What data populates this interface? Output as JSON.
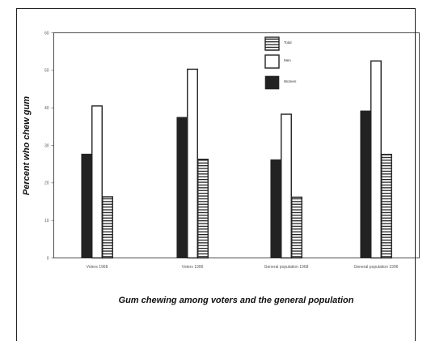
{
  "chart_data": {
    "type": "bar",
    "title": "",
    "xlabel": "Gum chewing among voters and the general population",
    "ylabel": "Percent who chew gum",
    "categories": [
      "Voters 1968",
      "Voters 1996",
      "General population 1968",
      "General population 1996"
    ],
    "series": [
      {
        "name": "Women",
        "values": [
          27.7,
          37.5,
          26.2,
          39.2
        ],
        "color": "#222222",
        "pattern": "solid"
      },
      {
        "name": "Men",
        "values": [
          40.5,
          50.3,
          38.3,
          52.5
        ],
        "color": "#ffffff",
        "pattern": "hollow"
      },
      {
        "name": "Total",
        "values": [
          16.3,
          26.3,
          16.2,
          27.6
        ],
        "color": "#ffffff",
        "pattern": "horizontal-stripes"
      }
    ],
    "legend_order": [
      "Total",
      "Men",
      "Women"
    ],
    "legend_position": "top-center",
    "ylim": [
      0,
      60
    ],
    "yticks": [
      "0",
      "10",
      "20",
      "30",
      "40",
      "50",
      "60"
    ],
    "grid": false
  }
}
